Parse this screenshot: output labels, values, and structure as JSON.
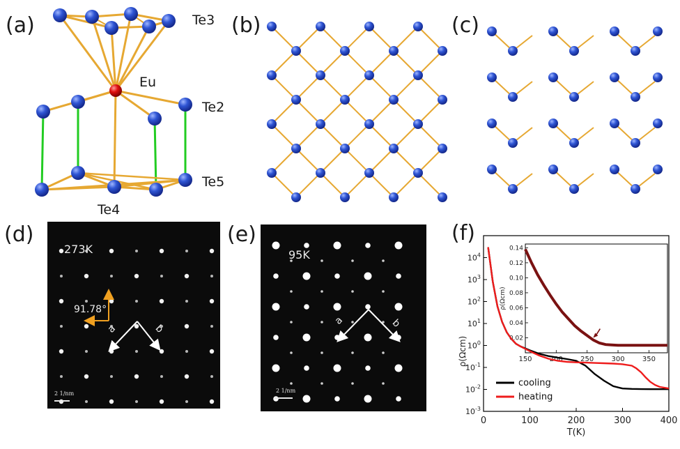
{
  "panels": {
    "a": {
      "label": "(a)",
      "atoms": {
        "te3": "Te3",
        "eu": "Eu",
        "te2": "Te2",
        "te5": "Te5",
        "te4": "Te4"
      }
    },
    "b": {
      "label": "(b)"
    },
    "c": {
      "label": "(c)"
    },
    "d": {
      "label": "(d)",
      "temperature": "273K",
      "angle": "91.78°",
      "axis_a": "a",
      "axis_b": "b",
      "scale": "2 1/nm"
    },
    "e": {
      "label": "(e)",
      "temperature": "95K",
      "axis_a": "a",
      "axis_b": "b",
      "scale": "2 1/nm"
    },
    "f": {
      "label": "(f)"
    }
  },
  "colors": {
    "te_atom": "#2f55d4",
    "eu_atom": "#e01010",
    "bond": "#e6a832",
    "vertical_bond": "#22cc22",
    "cooling": "#000000",
    "heating": "#ee1c1c",
    "inset": "#7a1212"
  },
  "chart_data": [
    {
      "type": "line",
      "xlabel": "T(K)",
      "ylabel": "ρ(Ωcm)",
      "xlim": [
        0,
        400
      ],
      "ylim_log": [
        0.001,
        100000
      ],
      "yscale": "log",
      "xticks": [
        "0",
        "100",
        "200",
        "300",
        "400"
      ],
      "yticks": [
        "10^-3",
        "10^-2",
        "10^-1",
        "10^0",
        "10^1",
        "10^2",
        "10^3",
        "10^4"
      ],
      "legend": "lower-left",
      "series": [
        {
          "name": "cooling",
          "x": [
            10,
            20,
            30,
            40,
            50,
            60,
            70,
            80,
            100,
            120,
            140,
            160,
            180,
            200,
            220,
            240,
            260,
            280,
            300,
            320,
            340,
            360,
            380,
            400
          ],
          "y": [
            30000,
            800,
            60,
            12,
            4.0,
            2.0,
            1.2,
            0.9,
            0.6,
            0.42,
            0.33,
            0.28,
            0.24,
            0.2,
            0.12,
            0.05,
            0.025,
            0.014,
            0.011,
            0.0105,
            0.0103,
            0.0102,
            0.0102,
            0.0102
          ]
        },
        {
          "name": "heating",
          "x": [
            10,
            20,
            30,
            40,
            50,
            60,
            70,
            80,
            100,
            120,
            140,
            160,
            180,
            200,
            220,
            240,
            260,
            280,
            300,
            320,
            330,
            340,
            350,
            360,
            370,
            380,
            400
          ],
          "y": [
            30000,
            800,
            60,
            12,
            4.0,
            2.0,
            1.2,
            0.9,
            0.55,
            0.35,
            0.25,
            0.2,
            0.18,
            0.17,
            0.165,
            0.16,
            0.155,
            0.15,
            0.14,
            0.12,
            0.09,
            0.06,
            0.035,
            0.022,
            0.016,
            0.013,
            0.011
          ]
        }
      ]
    },
    {
      "type": "line",
      "xlabel": "",
      "ylabel": "ρ(Ωcm)",
      "xlim": [
        150,
        380
      ],
      "ylim": [
        0,
        0.145
      ],
      "xticks": [
        "150",
        "200",
        "250",
        "300",
        "350"
      ],
      "yticks": [
        "0.02",
        "0.04",
        "0.06",
        "0.08",
        "0.10",
        "0.12",
        "0.14"
      ],
      "annotations": [
        "arrow near 260 K"
      ],
      "series": [
        {
          "x": [
            150,
            160,
            170,
            180,
            190,
            200,
            210,
            220,
            230,
            240,
            250,
            260,
            270,
            280,
            290,
            300,
            320,
            340,
            360,
            380
          ],
          "y": [
            0.138,
            0.12,
            0.104,
            0.09,
            0.077,
            0.065,
            0.054,
            0.045,
            0.036,
            0.029,
            0.023,
            0.017,
            0.013,
            0.011,
            0.0105,
            0.01,
            0.01,
            0.01,
            0.01,
            0.01
          ]
        }
      ]
    }
  ]
}
